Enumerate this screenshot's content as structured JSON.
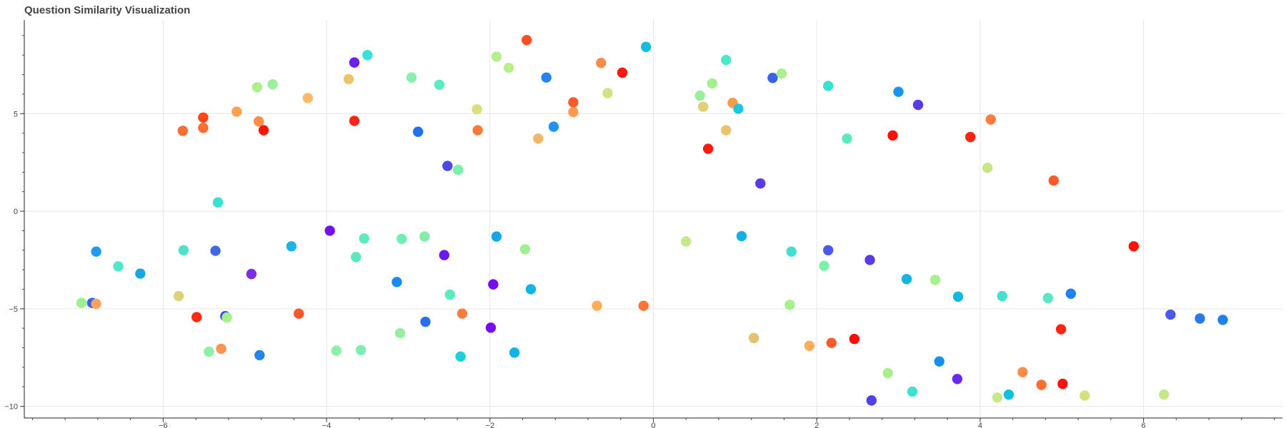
{
  "chart_data": {
    "type": "scatter",
    "title": "Question Similarity Visualization",
    "xlabel": "",
    "ylabel": "",
    "xlim": [
      -7.7,
      7.7
    ],
    "ylim": [
      -10.6,
      9.8
    ],
    "x_ticks": [
      -6,
      -4,
      -2,
      0,
      2,
      4,
      6
    ],
    "x_tick_labels": [
      "−6",
      "−4",
      "−2",
      "0",
      "2",
      "4",
      "6"
    ],
    "y_ticks": [
      -10,
      -5,
      0,
      5
    ],
    "y_tick_labels": [
      "−10",
      "−5",
      "0",
      "5"
    ],
    "grid": true,
    "legend": "none",
    "colormap": "rainbow",
    "points": [
      {
        "x": -6.82,
        "y": -2.07,
        "color": "#1e9bf0"
      },
      {
        "x": -6.55,
        "y": -2.83,
        "color": "#4fe8c8"
      },
      {
        "x": -6.28,
        "y": -3.2,
        "color": "#15a6e6"
      },
      {
        "x": -7.0,
        "y": -4.7,
        "color": "#9fef90"
      },
      {
        "x": -6.87,
        "y": -4.7,
        "color": "#3f63e8"
      },
      {
        "x": -6.82,
        "y": -4.75,
        "color": "#ffa35c"
      },
      {
        "x": -5.76,
        "y": 4.12,
        "color": "#ff6e30"
      },
      {
        "x": -5.51,
        "y": 4.8,
        "color": "#ff4415"
      },
      {
        "x": -5.51,
        "y": 4.27,
        "color": "#ff6e30"
      },
      {
        "x": -5.1,
        "y": 5.1,
        "color": "#ffa050"
      },
      {
        "x": -4.83,
        "y": 4.6,
        "color": "#ff8c46"
      },
      {
        "x": -4.77,
        "y": 4.15,
        "color": "#ff1200"
      },
      {
        "x": -4.85,
        "y": 6.35,
        "color": "#b0f08c"
      },
      {
        "x": -4.66,
        "y": 6.5,
        "color": "#99f09a"
      },
      {
        "x": -4.23,
        "y": 5.8,
        "color": "#ffb866"
      },
      {
        "x": -5.33,
        "y": 0.45,
        "color": "#36e3d3"
      },
      {
        "x": -5.75,
        "y": -2.0,
        "color": "#4ee3c9"
      },
      {
        "x": -5.36,
        "y": -2.03,
        "color": "#4068e6"
      },
      {
        "x": -4.92,
        "y": -3.22,
        "color": "#7a2ee6"
      },
      {
        "x": -4.43,
        "y": -1.8,
        "color": "#1cb4e4"
      },
      {
        "x": -5.81,
        "y": -4.35,
        "color": "#dcd27a"
      },
      {
        "x": -5.59,
        "y": -5.43,
        "color": "#ff2a12"
      },
      {
        "x": -5.24,
        "y": -5.38,
        "color": "#3b4fe8"
      },
      {
        "x": -5.22,
        "y": -5.45,
        "color": "#a6ef8c"
      },
      {
        "x": -5.44,
        "y": -7.2,
        "color": "#8df0a4"
      },
      {
        "x": -5.29,
        "y": -7.05,
        "color": "#ff944e"
      },
      {
        "x": -4.82,
        "y": -7.38,
        "color": "#2285ef"
      },
      {
        "x": -4.34,
        "y": -5.25,
        "color": "#ff5528"
      },
      {
        "x": -3.73,
        "y": 6.77,
        "color": "#ebc56c"
      },
      {
        "x": -3.66,
        "y": 7.62,
        "color": "#6a20ee"
      },
      {
        "x": -3.5,
        "y": 8.0,
        "color": "#36e3d6"
      },
      {
        "x": -3.66,
        "y": 4.63,
        "color": "#ff2516"
      },
      {
        "x": -2.96,
        "y": 6.85,
        "color": "#89f0ac"
      },
      {
        "x": -2.62,
        "y": 6.48,
        "color": "#58ecbe"
      },
      {
        "x": -2.88,
        "y": 4.07,
        "color": "#2370ee"
      },
      {
        "x": -2.52,
        "y": 2.32,
        "color": "#4a4ae6"
      },
      {
        "x": -2.39,
        "y": 2.12,
        "color": "#7cefae"
      },
      {
        "x": -2.16,
        "y": 5.22,
        "color": "#d8e07e"
      },
      {
        "x": -2.15,
        "y": 4.15,
        "color": "#ff7a38"
      },
      {
        "x": -1.92,
        "y": 7.92,
        "color": "#b3ef8a"
      },
      {
        "x": -1.77,
        "y": 7.35,
        "color": "#b9ef88"
      },
      {
        "x": -1.55,
        "y": 8.77,
        "color": "#ff4f20"
      },
      {
        "x": -1.41,
        "y": 3.72,
        "color": "#f3b865"
      },
      {
        "x": -1.22,
        "y": 4.33,
        "color": "#1f93ef"
      },
      {
        "x": -1.31,
        "y": 6.85,
        "color": "#2584ee"
      },
      {
        "x": -0.98,
        "y": 5.58,
        "color": "#ff5a2a"
      },
      {
        "x": -0.98,
        "y": 5.08,
        "color": "#ff9a4e"
      },
      {
        "x": -0.64,
        "y": 7.6,
        "color": "#ff8c46"
      },
      {
        "x": -0.56,
        "y": 6.05,
        "color": "#cfe384"
      },
      {
        "x": -0.38,
        "y": 7.1,
        "color": "#ff180c"
      },
      {
        "x": -0.09,
        "y": 8.42,
        "color": "#13bde0"
      },
      {
        "x": -3.96,
        "y": -1.0,
        "color": "#7410ee"
      },
      {
        "x": -3.64,
        "y": -2.35,
        "color": "#5ae8bc"
      },
      {
        "x": -3.54,
        "y": -1.4,
        "color": "#5decbc"
      },
      {
        "x": -3.08,
        "y": -1.42,
        "color": "#71eeb2"
      },
      {
        "x": -2.8,
        "y": -1.3,
        "color": "#82eea8"
      },
      {
        "x": -3.14,
        "y": -3.63,
        "color": "#1b8cef"
      },
      {
        "x": -2.56,
        "y": -2.25,
        "color": "#6a1aee"
      },
      {
        "x": -2.49,
        "y": -4.28,
        "color": "#58ecbe"
      },
      {
        "x": -2.79,
        "y": -5.67,
        "color": "#2b6fee"
      },
      {
        "x": -2.34,
        "y": -5.25,
        "color": "#ff7c3c"
      },
      {
        "x": -3.1,
        "y": -6.25,
        "color": "#94f09c"
      },
      {
        "x": -3.88,
        "y": -7.15,
        "color": "#8df0a4"
      },
      {
        "x": -3.58,
        "y": -7.12,
        "color": "#7cefae"
      },
      {
        "x": -2.36,
        "y": -7.45,
        "color": "#1ccfd9"
      },
      {
        "x": -1.92,
        "y": -1.3,
        "color": "#17a6e6"
      },
      {
        "x": -1.96,
        "y": -3.75,
        "color": "#7410ee"
      },
      {
        "x": -1.57,
        "y": -1.95,
        "color": "#a0ef92"
      },
      {
        "x": -1.5,
        "y": -4.0,
        "color": "#14b5e4"
      },
      {
        "x": -1.99,
        "y": -5.97,
        "color": "#7410ee"
      },
      {
        "x": -1.7,
        "y": -7.25,
        "color": "#13b2e6"
      },
      {
        "x": -0.69,
        "y": -4.85,
        "color": "#ffad58"
      },
      {
        "x": -0.12,
        "y": -4.85,
        "color": "#ff7436"
      },
      {
        "x": 0.4,
        "y": -1.55,
        "color": "#c7e88a"
      },
      {
        "x": 0.57,
        "y": 5.92,
        "color": "#99f09a"
      },
      {
        "x": 0.61,
        "y": 5.35,
        "color": "#e0cf76"
      },
      {
        "x": 0.72,
        "y": 6.55,
        "color": "#a6ef90"
      },
      {
        "x": 0.89,
        "y": 7.75,
        "color": "#4ae8c6"
      },
      {
        "x": 0.97,
        "y": 5.55,
        "color": "#ff9c4c"
      },
      {
        "x": 1.04,
        "y": 5.25,
        "color": "#1cc6df"
      },
      {
        "x": 0.89,
        "y": 4.15,
        "color": "#e9c46c"
      },
      {
        "x": 0.67,
        "y": 3.2,
        "color": "#ff1a0c"
      },
      {
        "x": 1.31,
        "y": 1.42,
        "color": "#5a3ae6"
      },
      {
        "x": 1.46,
        "y": 6.83,
        "color": "#3b63ea"
      },
      {
        "x": 1.57,
        "y": 7.05,
        "color": "#adef8c"
      },
      {
        "x": 2.14,
        "y": 6.42,
        "color": "#36e3d3"
      },
      {
        "x": 2.37,
        "y": 3.72,
        "color": "#5aeabd"
      },
      {
        "x": 2.93,
        "y": 3.88,
        "color": "#ff1008"
      },
      {
        "x": 3.0,
        "y": 6.12,
        "color": "#1694ee"
      },
      {
        "x": 3.24,
        "y": 5.45,
        "color": "#5a3ae6"
      },
      {
        "x": 3.88,
        "y": 3.8,
        "color": "#ff2412"
      },
      {
        "x": 4.13,
        "y": 4.7,
        "color": "#ff7c3c"
      },
      {
        "x": 4.09,
        "y": 2.22,
        "color": "#c7e68a"
      },
      {
        "x": 4.9,
        "y": 1.57,
        "color": "#ff5a28"
      },
      {
        "x": 1.08,
        "y": -1.28,
        "color": "#12b0e4"
      },
      {
        "x": 1.69,
        "y": -2.07,
        "color": "#42e0ce"
      },
      {
        "x": 2.14,
        "y": -2.0,
        "color": "#4a59e8"
      },
      {
        "x": 2.65,
        "y": -2.5,
        "color": "#5a3ae6"
      },
      {
        "x": 2.09,
        "y": -2.8,
        "color": "#7defac"
      },
      {
        "x": 3.1,
        "y": -3.48,
        "color": "#13b6e2"
      },
      {
        "x": 3.45,
        "y": -3.52,
        "color": "#a9ef8e"
      },
      {
        "x": 3.73,
        "y": -4.38,
        "color": "#12b8e2"
      },
      {
        "x": 4.27,
        "y": -4.35,
        "color": "#42e0ce"
      },
      {
        "x": 4.83,
        "y": -4.45,
        "color": "#5ae6c0"
      },
      {
        "x": 5.11,
        "y": -4.23,
        "color": "#2080ef"
      },
      {
        "x": 1.67,
        "y": -4.8,
        "color": "#a9ef8e"
      },
      {
        "x": 1.23,
        "y": -6.5,
        "color": "#e5c36e"
      },
      {
        "x": 1.91,
        "y": -6.9,
        "color": "#ffad58"
      },
      {
        "x": 2.18,
        "y": -6.75,
        "color": "#ff5a2a"
      },
      {
        "x": 2.46,
        "y": -6.55,
        "color": "#ff0c06"
      },
      {
        "x": 2.87,
        "y": -8.3,
        "color": "#a9ef8e"
      },
      {
        "x": 3.17,
        "y": -9.25,
        "color": "#42e0ce"
      },
      {
        "x": 3.5,
        "y": -7.7,
        "color": "#1590ee"
      },
      {
        "x": 3.72,
        "y": -8.6,
        "color": "#6b28ee"
      },
      {
        "x": 2.67,
        "y": -9.7,
        "color": "#4a44e6"
      },
      {
        "x": 4.21,
        "y": -9.55,
        "color": "#c7e88a"
      },
      {
        "x": 4.35,
        "y": -9.4,
        "color": "#13c0e0"
      },
      {
        "x": 4.52,
        "y": -8.25,
        "color": "#ff8c46"
      },
      {
        "x": 4.75,
        "y": -8.9,
        "color": "#ff6e30"
      },
      {
        "x": 5.01,
        "y": -8.85,
        "color": "#ff1008"
      },
      {
        "x": 5.28,
        "y": -9.45,
        "color": "#d5e07c"
      },
      {
        "x": 4.99,
        "y": -6.05,
        "color": "#ff2412"
      },
      {
        "x": 5.88,
        "y": -1.8,
        "color": "#ff1008"
      },
      {
        "x": 6.33,
        "y": -5.3,
        "color": "#4a59e8"
      },
      {
        "x": 6.69,
        "y": -5.5,
        "color": "#2a78ee"
      },
      {
        "x": 6.97,
        "y": -5.57,
        "color": "#2080ef"
      },
      {
        "x": 6.25,
        "y": -9.4,
        "color": "#c7e68a"
      }
    ]
  }
}
